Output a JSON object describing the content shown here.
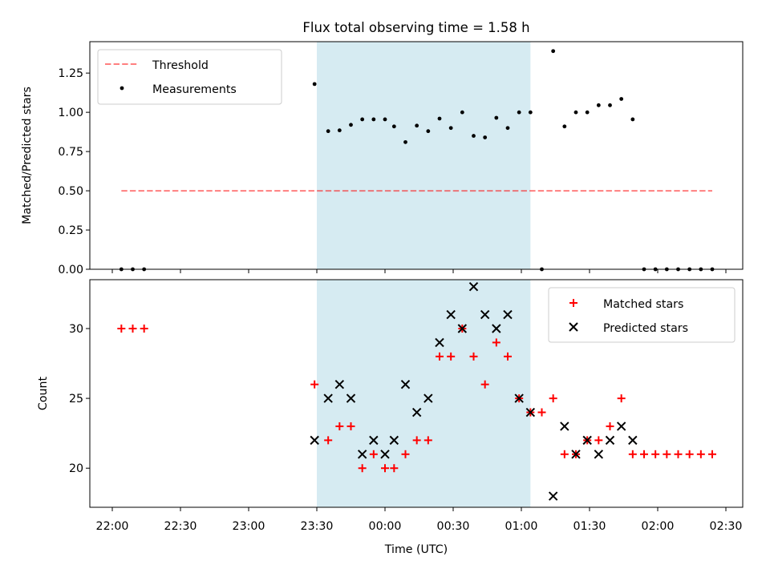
{
  "title": "Flux total observing time = 1.58 h",
  "colors": {
    "shade": "#add8e6",
    "threshold": "#ff0000",
    "measurement": "#000000",
    "matched": "#ff0000",
    "predicted": "#000000"
  },
  "chart_data": [
    {
      "type": "scatter",
      "ylabel": "Matched/Predicted stars",
      "ylim": [
        0,
        1.45
      ],
      "yticks": [
        "0.00",
        "0.25",
        "0.50",
        "0.75",
        "1.00",
        "1.25"
      ],
      "shaded_span": [
        "23:30",
        "01:04"
      ],
      "legend": {
        "location": "upper-left",
        "entries": [
          "Threshold",
          "Measurements"
        ]
      },
      "threshold": {
        "name": "Threshold",
        "value": 0.5,
        "x_range": [
          "22:04",
          "02:24"
        ]
      },
      "series": [
        {
          "name": "Measurements",
          "points": [
            [
              "22:04",
              0.0
            ],
            [
              "22:09",
              0.0
            ],
            [
              "22:14",
              0.0
            ],
            [
              "23:29",
              1.18
            ],
            [
              "23:35",
              0.88
            ],
            [
              "23:40",
              0.885
            ],
            [
              "23:45",
              0.92
            ],
            [
              "23:50",
              0.955
            ],
            [
              "23:55",
              0.955
            ],
            [
              "00:00",
              0.955
            ],
            [
              "00:04",
              0.91
            ],
            [
              "00:09",
              0.81
            ],
            [
              "00:14",
              0.915
            ],
            [
              "00:19",
              0.88
            ],
            [
              "00:24",
              0.96
            ],
            [
              "00:29",
              0.9
            ],
            [
              "00:34",
              1.0
            ],
            [
              "00:39",
              0.85
            ],
            [
              "00:44",
              0.84
            ],
            [
              "00:49",
              0.965
            ],
            [
              "00:54",
              0.9
            ],
            [
              "00:59",
              1.0
            ],
            [
              "01:04",
              1.0
            ],
            [
              "01:09",
              0.0
            ],
            [
              "01:14",
              1.39
            ],
            [
              "01:19",
              0.91
            ],
            [
              "01:24",
              1.0
            ],
            [
              "01:29",
              1.0
            ],
            [
              "01:34",
              1.045
            ],
            [
              "01:39",
              1.045
            ],
            [
              "01:44",
              1.085
            ],
            [
              "01:49",
              0.955
            ],
            [
              "01:54",
              0.0
            ],
            [
              "01:59",
              0.0
            ],
            [
              "02:04",
              0.0
            ],
            [
              "02:09",
              0.0
            ],
            [
              "02:14",
              0.0
            ],
            [
              "02:19",
              0.0
            ],
            [
              "02:24",
              0.0
            ]
          ]
        }
      ]
    },
    {
      "type": "scatter",
      "xlabel": "Time (UTC)",
      "ylabel": "Count",
      "ylim": [
        17.2,
        33.5
      ],
      "yticks": [
        "20",
        "25",
        "30"
      ],
      "xticks": [
        "22:00",
        "22:30",
        "23:00",
        "23:30",
        "00:00",
        "00:30",
        "01:00",
        "01:30",
        "02:00",
        "02:30"
      ],
      "shaded_span": [
        "23:30",
        "01:04"
      ],
      "legend": {
        "location": "upper-right",
        "entries": [
          "Matched stars",
          "Predicted stars"
        ]
      },
      "series": [
        {
          "name": "Matched stars",
          "marker": "+",
          "points": [
            [
              "22:04",
              30
            ],
            [
              "22:09",
              30
            ],
            [
              "22:14",
              30
            ],
            [
              "23:29",
              26
            ],
            [
              "23:35",
              22
            ],
            [
              "23:40",
              23
            ],
            [
              "23:45",
              23
            ],
            [
              "23:50",
              20
            ],
            [
              "23:55",
              21
            ],
            [
              "00:00",
              20
            ],
            [
              "00:04",
              20
            ],
            [
              "00:09",
              21
            ],
            [
              "00:14",
              22
            ],
            [
              "00:19",
              22
            ],
            [
              "00:24",
              28
            ],
            [
              "00:29",
              28
            ],
            [
              "00:34",
              30
            ],
            [
              "00:39",
              28
            ],
            [
              "00:44",
              26
            ],
            [
              "00:49",
              29
            ],
            [
              "00:54",
              28
            ],
            [
              "00:59",
              25
            ],
            [
              "01:04",
              24
            ],
            [
              "01:09",
              24
            ],
            [
              "01:14",
              25
            ],
            [
              "01:19",
              21
            ],
            [
              "01:24",
              21
            ],
            [
              "01:29",
              22
            ],
            [
              "01:34",
              22
            ],
            [
              "01:39",
              23
            ],
            [
              "01:44",
              25
            ],
            [
              "01:49",
              21
            ],
            [
              "01:54",
              21
            ],
            [
              "01:59",
              21
            ],
            [
              "02:04",
              21
            ],
            [
              "02:09",
              21
            ],
            [
              "02:14",
              21
            ],
            [
              "02:19",
              21
            ],
            [
              "02:24",
              21
            ]
          ]
        },
        {
          "name": "Predicted stars",
          "marker": "x",
          "points": [
            [
              "23:29",
              22
            ],
            [
              "23:35",
              25
            ],
            [
              "23:40",
              26
            ],
            [
              "23:45",
              25
            ],
            [
              "23:50",
              21
            ],
            [
              "23:55",
              22
            ],
            [
              "00:00",
              21
            ],
            [
              "00:04",
              22
            ],
            [
              "00:09",
              26
            ],
            [
              "00:14",
              24
            ],
            [
              "00:19",
              25
            ],
            [
              "00:24",
              29
            ],
            [
              "00:29",
              31
            ],
            [
              "00:34",
              30
            ],
            [
              "00:39",
              33
            ],
            [
              "00:44",
              31
            ],
            [
              "00:49",
              30
            ],
            [
              "00:54",
              31
            ],
            [
              "00:59",
              25
            ],
            [
              "01:04",
              24
            ],
            [
              "01:14",
              18
            ],
            [
              "01:19",
              23
            ],
            [
              "01:24",
              21
            ],
            [
              "01:29",
              22
            ],
            [
              "01:34",
              21
            ],
            [
              "01:39",
              22
            ],
            [
              "01:44",
              23
            ],
            [
              "01:49",
              22
            ]
          ]
        }
      ]
    }
  ]
}
